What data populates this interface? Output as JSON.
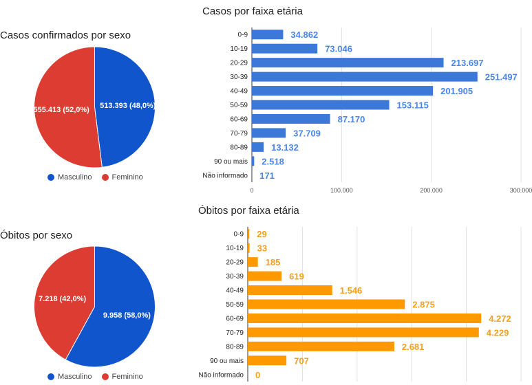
{
  "chart_data": [
    {
      "type": "pie",
      "title": "Casos confirmados por sexo",
      "slices": [
        {
          "label": "Masculino",
          "value": 513393,
          "display": "513.393 (48,0%)",
          "color": "#1155cc"
        },
        {
          "label": "Feminino",
          "value": 555413,
          "display": "555.413 (52,0%)",
          "color": "#dc3c32"
        }
      ],
      "legend": [
        "Masculino",
        "Feminino"
      ],
      "legend_position": "bottom"
    },
    {
      "type": "bar",
      "orientation": "horizontal",
      "title": "Casos por faixa etária",
      "categories": [
        "0-9",
        "10-19",
        "20-29",
        "30-39",
        "40-49",
        "50-59",
        "60-69",
        "70-79",
        "80-89",
        "90 ou mais",
        "Não informado"
      ],
      "values": [
        34862,
        73046,
        213697,
        251497,
        201905,
        153115,
        87170,
        37709,
        13132,
        2518,
        171
      ],
      "value_labels": [
        "34.862",
        "73.046",
        "213.697",
        "251.497",
        "201.905",
        "153.115",
        "87.170",
        "37.709",
        "13.132",
        "2.518",
        "171"
      ],
      "xlim": [
        0,
        300000
      ],
      "xticks": [
        0,
        100000,
        200000,
        300000
      ],
      "xtick_labels": [
        "0",
        "100.000",
        "200.000",
        "300.000"
      ],
      "color": "#3c78d8",
      "label_color": "#4a86e8",
      "grid": true
    },
    {
      "type": "pie",
      "title": "Óbitos por sexo",
      "slices": [
        {
          "label": "Masculino",
          "value": 9958,
          "display": "9.958 (58,0%)",
          "color": "#1155cc"
        },
        {
          "label": "Feminino",
          "value": 7218,
          "display": "7.218 (42,0%)",
          "color": "#dc3c32"
        }
      ],
      "legend": [
        "Masculino",
        "Feminino"
      ],
      "legend_position": "bottom"
    },
    {
      "type": "bar",
      "orientation": "horizontal",
      "title": "Óbitos por faixa etária",
      "categories": [
        "0-9",
        "10-19",
        "20-29",
        "30-39",
        "40-49",
        "50-59",
        "60-69",
        "70-79",
        "80-89",
        "90 ou mais",
        "Não informado"
      ],
      "values": [
        29,
        33,
        185,
        619,
        1546,
        2875,
        4272,
        4229,
        2681,
        707,
        0
      ],
      "value_labels": [
        "29",
        "33",
        "185",
        "619",
        "1.546",
        "2.875",
        "4.272",
        "4.229",
        "2.681",
        "707",
        "0"
      ],
      "xlim": [
        0,
        5000
      ],
      "xticks": [
        0,
        1000,
        2000,
        3000,
        4000,
        5000
      ],
      "color": "#ff9900",
      "label_color": "#f6a11b",
      "grid": true
    }
  ]
}
